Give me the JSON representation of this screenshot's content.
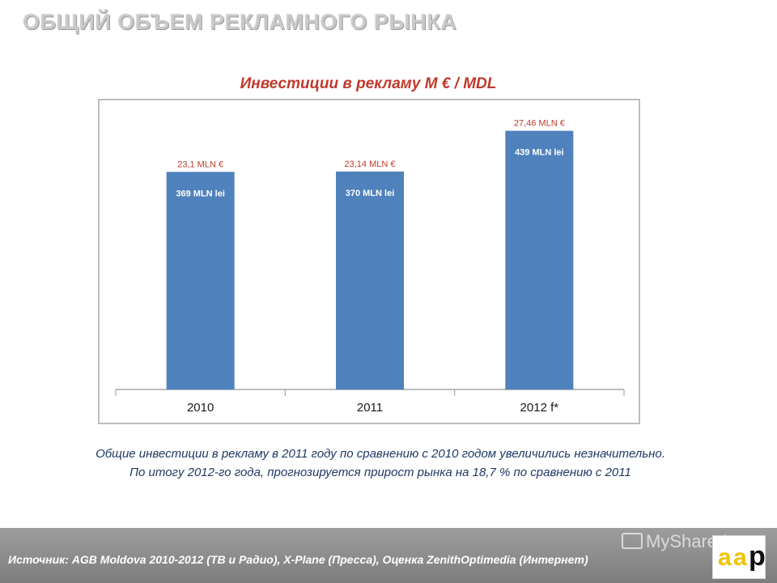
{
  "slide": {
    "title": "ОБЩИЙ ОБЪЕМ РЕКЛАМНОГО РЫНКА"
  },
  "chart_data": {
    "type": "bar",
    "title": "Инвестиции в рекламу М € / MDL",
    "categories": [
      "2010",
      "2011",
      "2012 f*"
    ],
    "values": [
      23.1,
      23.14,
      27.46
    ],
    "value_labels": [
      "23,1 MLN €",
      "23,14 MLN €",
      "27,46 MLN €"
    ],
    "inner_labels": [
      "369 MLN lei",
      "370 MLN lei",
      "439 MLN lei"
    ],
    "series": [
      {
        "values_eur_mln": [
          23.1,
          23.14,
          27.46
        ],
        "values_lei_mln": [
          369,
          370,
          439
        ]
      }
    ],
    "ylim": [
      0,
      30
    ],
    "grid": false,
    "colors": {
      "bar": "#4f81bd",
      "value_label": "#c0392b",
      "inner_label": "#ffffff"
    }
  },
  "notes": {
    "line1": "Общие инвестиции в рекламу в 2011 году по сравнению с 2010 годом увеличились незначительно.",
    "line2": "По итогу 2012-го года, прогнозируется прирост рынка на 18,7 % по сравнению с 2011"
  },
  "footer": {
    "source": "Источник: AGB Moldova 2010-2012 (ТВ и Радио), X-Plane (Пресса), Оценка ZenithOptimedia (Интернет)",
    "watermark": "MyShared",
    "logo_letters": [
      "a",
      "a",
      "p"
    ]
  }
}
